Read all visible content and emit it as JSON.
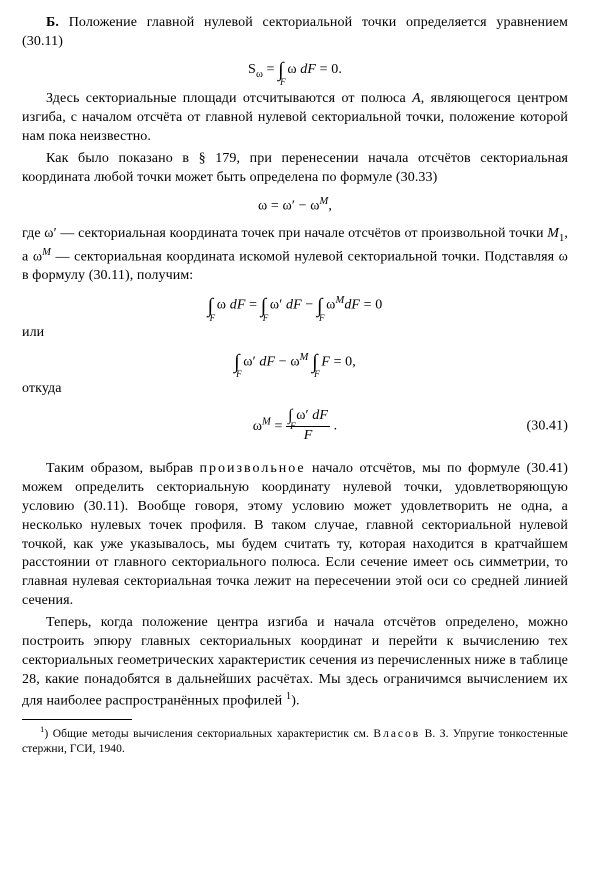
{
  "p1": "Б. Положение главной нулевой секториальной точки определяется уравнением (30.11)",
  "f1": "S<sub>ω</sub> = <span class='intspan'>∫<span class='lb'>F</span></span> ω <span class='ital'>dF</span> = 0.",
  "p2": "Здесь секториальные площади отсчитываются от полюса <span class='ital'>A</span>, являющегося центром изгиба, с началом отсчёта от главной нулевой секториальной точки, положение которой нам пока неизвестно.",
  "p3": "Как было показано в § 179, при перенесении начала отсчётов секториальная координата любой точки может быть определена по формуле (30.33)",
  "f2": "ω = ω′ − ω<sup><i>M</i></sup>,",
  "p4": "где ω′ — секториальная координата точек при начале отсчётов от произвольной точки <span class='ital'>M</span><sub>1</sub>, а ω<sup><i>M</i></sup> — секториальная координата искомой нулевой секториальной точки. Подставляя ω в формулу (30.11), получим:",
  "f3": "<span class='intspan'>∫<span class='lb'>F</span></span> ω <span class='ital'>dF</span> = <span class='intspan'>∫<span class='lb'>F</span></span> ω′ <span class='ital'>dF</span> − <span class='intspan'>∫<span class='lb'>F</span></span> ω<sup><i>M</i></sup><span class='ital'>dF</span> = 0",
  "w_ili": "или",
  "f4": "<span class='intspan'>∫<span class='lb'>F</span></span> ω′ <span class='ital'>dF</span> − ω<sup><i>M</i></sup> <span class='intspan'>∫<span class='lb'>F</span></span> <span class='ital'>F</span> = 0,",
  "w_otkuda": "откуда",
  "f5_lhs": "ω<sup><i>M</i></sup> = ",
  "f5_num": "<span class='intspan' style='font-size:16px'>∫<span class='lb'>F</span></span> ω′ <span class='ital'>dF</span>",
  "f5_den": "<span class='ital'>F</span>",
  "f5_dot": ".",
  "eq541": "(30.41)",
  "p5": "Таким образом, выбрав <span class='spaced'>произвольное</span> начало отсчётов, мы по формуле (30.41) можем определить секториальную координату нулевой точки, удовлетворяющую условию (30.11). Вообще говоря, этому условию может удовлетворить не одна, а несколько нулевых точек профиля. В таком случае, главной секториальной нулевой точкой, как уже указывалось, мы будем считать ту, которая находится в кратчайшем расстоянии от главного секториального полюса. Если сечение имеет ось симметрии, то главная нулевая секториальная точка лежит на пересечении этой оси со средней линией сечения.",
  "p6": "Теперь, когда положение центра изгиба и начала отсчётов определено, можно построить эпюру главных секториальных координат и перейти к вычислению тех секториальных геометрических характеристик сечения из перечисленных ниже в таблице 28, какие понадобятся в дальнейших расчётах. Мы здесь ограничимся вычислением их для наиболее распространённых профилей <sup>1</sup>).",
  "fn": "<sup>1</sup>) Общие методы вычисления секториальных характеристик см. <span class='spaced'>Вла­сов</span> В. З. Упругие тонкостенные стержни, ГСИ, 1940."
}
